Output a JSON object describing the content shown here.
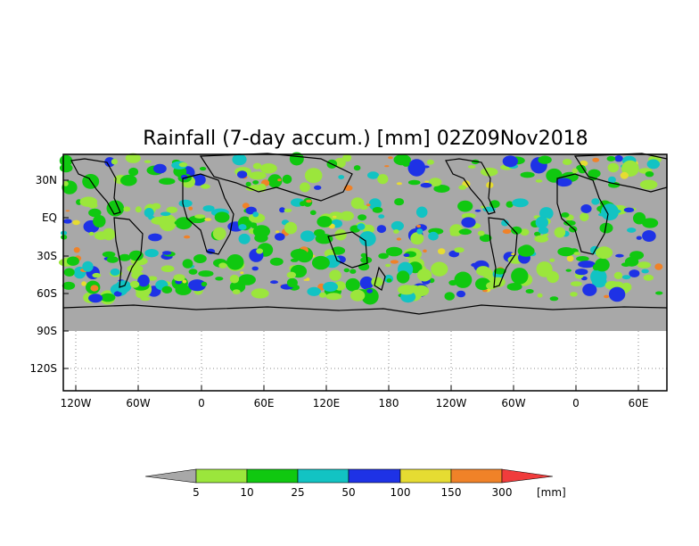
{
  "title": "Rainfall (7-day accum.) [mm] 02Z09Nov2018",
  "map": {
    "ocean_color": "#a8a8a8",
    "blank_color": "#ffffff",
    "coast_color": "#000000",
    "lat_labels": [
      "30N",
      "EQ",
      "30S",
      "60S",
      "90S",
      "120S"
    ],
    "lon_labels": [
      "120W",
      "60W",
      "0",
      "60E",
      "120E",
      "180",
      "120W",
      "60W",
      "0",
      "60E"
    ]
  },
  "colorbar": {
    "labels": [
      "5",
      "10",
      "25",
      "50",
      "100",
      "150",
      "300"
    ],
    "unit": "[mm]",
    "colors": [
      "#a8a8a8",
      "#9be63c",
      "#10c810",
      "#12c3c3",
      "#1e32e6",
      "#e6dc32",
      "#f08228",
      "#f03c3c"
    ]
  }
}
